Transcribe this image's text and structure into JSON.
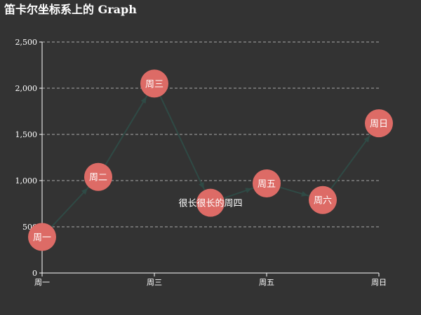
{
  "chart_data": {
    "type": "graph",
    "title": "笛卡尔坐标系上的 Graph",
    "x_categories": [
      "周一",
      "周二",
      "周三",
      "周四",
      "周五",
      "周六",
      "周日"
    ],
    "x_tick_labels": [
      "周一",
      "周三",
      "周五",
      "周日"
    ],
    "y_ticks": [
      0,
      500,
      1000,
      1500,
      2000,
      2500
    ],
    "y_tick_labels": [
      "0",
      "500",
      "1,000",
      "1,500",
      "2,000",
      "2,500"
    ],
    "ylim": [
      0,
      2500
    ],
    "nodes": [
      {
        "label": "周一",
        "x": "周一",
        "y": 390
      },
      {
        "label": "周二",
        "x": "周二",
        "y": 1040
      },
      {
        "label": "周三",
        "x": "周三",
        "y": 2050
      },
      {
        "label": "很长很长的周四",
        "x": "周四",
        "y": 760
      },
      {
        "label": "周五",
        "x": "周五",
        "y": 970
      },
      {
        "label": "周六",
        "x": "周六",
        "y": 790
      },
      {
        "label": "周日",
        "x": "周日",
        "y": 1620
      }
    ],
    "links": [
      [
        0,
        1
      ],
      [
        1,
        2
      ],
      [
        2,
        3
      ],
      [
        3,
        4
      ],
      [
        4,
        5
      ],
      [
        5,
        6
      ]
    ],
    "grid": true,
    "colors": {
      "node": "#dd6b66",
      "link": "#2f4a45",
      "grid": "#aaaaaa",
      "axis": "#ffffff",
      "text": "#ffffff"
    }
  }
}
